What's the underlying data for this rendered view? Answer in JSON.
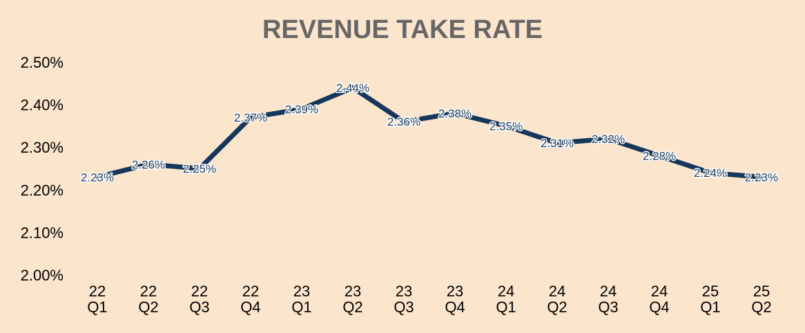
{
  "chart_data": {
    "type": "line",
    "title": "REVENUE TAKE RATE",
    "xlabel": "",
    "ylabel": "",
    "categories": [
      [
        "22",
        "Q1"
      ],
      [
        "22",
        "Q2"
      ],
      [
        "22",
        "Q3"
      ],
      [
        "22",
        "Q4"
      ],
      [
        "23",
        "Q1"
      ],
      [
        "23",
        "Q2"
      ],
      [
        "23",
        "Q3"
      ],
      [
        "23",
        "Q4"
      ],
      [
        "24",
        "Q1"
      ],
      [
        "24",
        "Q2"
      ],
      [
        "24",
        "Q3"
      ],
      [
        "24",
        "Q4"
      ],
      [
        "25",
        "Q1"
      ],
      [
        "25",
        "Q2"
      ]
    ],
    "series": [
      {
        "values": [
          2.23,
          2.26,
          2.25,
          2.37,
          2.39,
          2.44,
          2.36,
          2.38,
          2.35,
          2.31,
          2.32,
          2.28,
          2.24,
          2.23
        ],
        "labels": [
          "2.23%",
          "2.26%",
          "2.25%",
          "2.37%",
          "2.39%",
          "2.44%",
          "2.36%",
          "2.38%",
          "2.35%",
          "2.31%",
          "2.32%",
          "2.28%",
          "2.24%",
          "2.23%"
        ]
      }
    ],
    "ylim": [
      2.0,
      2.5
    ],
    "yticks": [
      "2.00%",
      "2.10%",
      "2.20%",
      "2.30%",
      "2.40%",
      "2.50%"
    ],
    "grid": false,
    "legend": "none",
    "colors": {
      "line": "#16375c",
      "title": "#666666",
      "background": "#fce5cd",
      "label": "#1c3d5e"
    }
  }
}
